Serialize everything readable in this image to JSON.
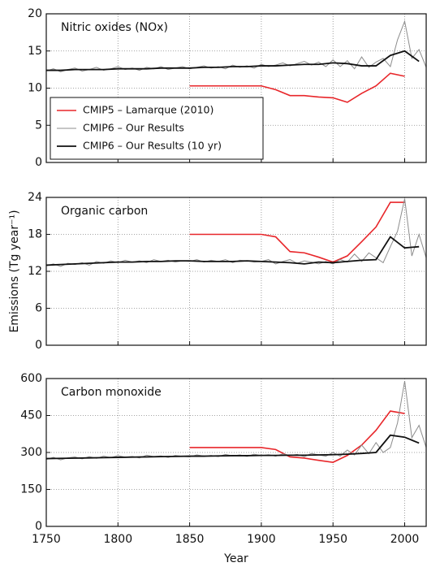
{
  "chart_data": [
    {
      "type": "line",
      "title": "Nitric oxides (NOx)",
      "xlim": [
        1750,
        2015
      ],
      "xticks": [
        1750,
        1800,
        1850,
        1900,
        1950,
        2000
      ],
      "ylim": [
        0,
        20
      ],
      "yticks": [
        0,
        5,
        10,
        15,
        20
      ],
      "grid": true,
      "legend": "lower left",
      "series": [
        {
          "name": "CMIP5 – Lamarque (2010)",
          "color": "#e8262a",
          "x": [
            1850,
            1860,
            1870,
            1880,
            1890,
            1900,
            1910,
            1920,
            1930,
            1940,
            1950,
            1960,
            1970,
            1980,
            1990,
            2000
          ],
          "values": [
            10.3,
            10.3,
            10.3,
            10.3,
            10.3,
            10.3,
            9.8,
            9.0,
            9.0,
            8.8,
            8.7,
            8.1,
            9.3,
            10.3,
            12.0,
            11.6
          ]
        },
        {
          "name": "CMIP6 – Our Results",
          "color": "#8c8c8c",
          "x": [
            1750,
            1755,
            1760,
            1765,
            1770,
            1775,
            1780,
            1785,
            1790,
            1795,
            1800,
            1805,
            1810,
            1815,
            1820,
            1825,
            1830,
            1835,
            1840,
            1845,
            1850,
            1855,
            1860,
            1865,
            1870,
            1875,
            1880,
            1885,
            1890,
            1895,
            1900,
            1905,
            1910,
            1915,
            1920,
            1925,
            1930,
            1935,
            1940,
            1945,
            1950,
            1955,
            1960,
            1965,
            1970,
            1975,
            1980,
            1985,
            1990,
            1995,
            2000,
            2005,
            2010,
            2015
          ],
          "values": [
            12.3,
            12.6,
            12.2,
            12.5,
            12.7,
            12.3,
            12.5,
            12.8,
            12.4,
            12.6,
            12.9,
            12.5,
            12.7,
            12.4,
            12.8,
            12.6,
            12.9,
            12.5,
            12.7,
            12.9,
            12.6,
            12.8,
            13.0,
            12.7,
            12.9,
            12.6,
            13.1,
            12.8,
            13.0,
            12.7,
            13.2,
            12.9,
            13.1,
            13.4,
            13.0,
            13.3,
            13.6,
            13.1,
            13.5,
            12.9,
            13.8,
            12.9,
            13.7,
            12.6,
            14.2,
            12.8,
            13.5,
            14.0,
            12.9,
            16.5,
            19.0,
            14.0,
            15.2,
            12.8
          ]
        },
        {
          "name": "CMIP6 – Our Results (10 yr)",
          "color": "#111111",
          "x": [
            1750,
            1760,
            1770,
            1780,
            1790,
            1800,
            1810,
            1820,
            1830,
            1840,
            1850,
            1860,
            1870,
            1880,
            1890,
            1900,
            1910,
            1920,
            1930,
            1940,
            1950,
            1960,
            1970,
            1980,
            1990,
            2000,
            2010
          ],
          "values": [
            12.4,
            12.4,
            12.5,
            12.5,
            12.5,
            12.6,
            12.6,
            12.6,
            12.7,
            12.7,
            12.7,
            12.8,
            12.8,
            12.9,
            12.9,
            13.0,
            13.0,
            13.1,
            13.2,
            13.2,
            13.4,
            13.3,
            13.0,
            13.0,
            14.4,
            15.0,
            13.6
          ]
        }
      ]
    },
    {
      "type": "line",
      "title": "Organic carbon",
      "ylabel": "Emissions (Tg year⁻¹)",
      "xlim": [
        1750,
        2015
      ],
      "xticks": [
        1750,
        1800,
        1850,
        1900,
        1950,
        2000
      ],
      "ylim": [
        0,
        24
      ],
      "yticks": [
        0,
        6,
        12,
        18,
        24
      ],
      "grid": true,
      "series": [
        {
          "color": "#e8262a",
          "x": [
            1850,
            1860,
            1870,
            1880,
            1890,
            1900,
            1910,
            1920,
            1930,
            1940,
            1950,
            1960,
            1970,
            1980,
            1990,
            2000
          ],
          "values": [
            18,
            18,
            18,
            18,
            18,
            18,
            17.6,
            15.2,
            15.0,
            14.3,
            13.5,
            14.5,
            16.8,
            19.2,
            23.2,
            23.2
          ]
        },
        {
          "color": "#8c8c8c",
          "x": [
            1750,
            1755,
            1760,
            1765,
            1770,
            1775,
            1780,
            1785,
            1790,
            1795,
            1800,
            1805,
            1810,
            1815,
            1820,
            1825,
            1830,
            1835,
            1840,
            1845,
            1850,
            1855,
            1860,
            1865,
            1870,
            1875,
            1880,
            1885,
            1890,
            1895,
            1900,
            1905,
            1910,
            1915,
            1920,
            1925,
            1930,
            1935,
            1940,
            1945,
            1950,
            1955,
            1960,
            1965,
            1970,
            1975,
            1980,
            1985,
            1990,
            1995,
            2000,
            2005,
            2010,
            2015
          ],
          "values": [
            12.9,
            13.2,
            12.8,
            13.3,
            13.1,
            13.4,
            13.0,
            13.6,
            13.3,
            13.7,
            13.4,
            13.8,
            13.5,
            13.7,
            13.4,
            13.9,
            13.6,
            13.8,
            13.5,
            13.7,
            13.6,
            13.9,
            13.5,
            13.8,
            13.6,
            13.9,
            13.4,
            13.8,
            13.7,
            13.5,
            13.6,
            13.9,
            13.2,
            13.6,
            13.9,
            13.3,
            13.7,
            13.5,
            13.2,
            13.6,
            13.2,
            13.9,
            13.5,
            14.8,
            13.6,
            15.0,
            14.2,
            13.4,
            16.0,
            18.5,
            23.8,
            14.5,
            18.0,
            14.2
          ]
        },
        {
          "color": "#111111",
          "x": [
            1750,
            1760,
            1770,
            1780,
            1790,
            1800,
            1810,
            1820,
            1830,
            1840,
            1850,
            1860,
            1870,
            1880,
            1890,
            1900,
            1910,
            1920,
            1930,
            1940,
            1950,
            1960,
            1970,
            1980,
            1990,
            2000,
            2010
          ],
          "values": [
            13.0,
            13.1,
            13.2,
            13.3,
            13.4,
            13.5,
            13.5,
            13.6,
            13.6,
            13.7,
            13.7,
            13.6,
            13.6,
            13.6,
            13.7,
            13.6,
            13.5,
            13.4,
            13.2,
            13.5,
            13.4,
            13.6,
            13.8,
            13.9,
            17.6,
            15.8,
            16.0
          ]
        }
      ]
    },
    {
      "type": "line",
      "title": "Carbon monoxide",
      "xlabel": "Year",
      "xlim": [
        1750,
        2015
      ],
      "xticks": [
        1750,
        1800,
        1850,
        1900,
        1950,
        2000
      ],
      "ylim": [
        0,
        600
      ],
      "yticks": [
        0,
        150,
        300,
        450,
        600
      ],
      "grid": true,
      "series": [
        {
          "color": "#e8262a",
          "x": [
            1850,
            1860,
            1870,
            1880,
            1890,
            1900,
            1910,
            1920,
            1930,
            1940,
            1950,
            1960,
            1970,
            1980,
            1990,
            2000
          ],
          "values": [
            320,
            320,
            320,
            320,
            320,
            320,
            312,
            282,
            277,
            268,
            260,
            288,
            330,
            390,
            468,
            458
          ]
        },
        {
          "color": "#8c8c8c",
          "x": [
            1750,
            1755,
            1760,
            1765,
            1770,
            1775,
            1780,
            1785,
            1790,
            1795,
            1800,
            1805,
            1810,
            1815,
            1820,
            1825,
            1830,
            1835,
            1840,
            1845,
            1850,
            1855,
            1860,
            1865,
            1870,
            1875,
            1880,
            1885,
            1890,
            1895,
            1900,
            1905,
            1910,
            1915,
            1920,
            1925,
            1930,
            1935,
            1940,
            1945,
            1950,
            1955,
            1960,
            1965,
            1970,
            1975,
            1980,
            1985,
            1990,
            1995,
            2000,
            2005,
            2010,
            2015
          ],
          "values": [
            272,
            280,
            270,
            278,
            282,
            274,
            283,
            276,
            285,
            279,
            287,
            281,
            284,
            278,
            289,
            283,
            286,
            280,
            288,
            284,
            282,
            290,
            285,
            288,
            283,
            292,
            286,
            290,
            284,
            293,
            287,
            291,
            285,
            294,
            288,
            292,
            283,
            296,
            290,
            285,
            300,
            285,
            310,
            290,
            330,
            295,
            340,
            300,
            320,
            420,
            590,
            360,
            410,
            320
          ]
        },
        {
          "color": "#111111",
          "x": [
            1750,
            1760,
            1770,
            1780,
            1790,
            1800,
            1810,
            1820,
            1830,
            1840,
            1850,
            1860,
            1870,
            1880,
            1890,
            1900,
            1910,
            1920,
            1930,
            1940,
            1950,
            1960,
            1970,
            1980,
            1990,
            2000,
            2010
          ],
          "values": [
            275,
            276,
            277,
            278,
            279,
            280,
            281,
            282,
            283,
            284,
            285,
            285,
            286,
            287,
            287,
            288,
            288,
            289,
            289,
            290,
            291,
            293,
            296,
            300,
            370,
            362,
            338
          ]
        }
      ]
    }
  ]
}
